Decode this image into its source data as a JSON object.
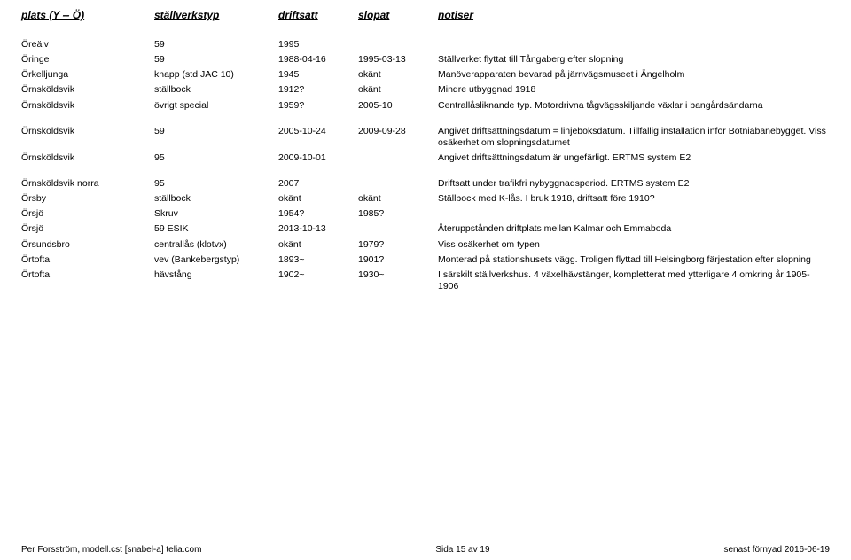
{
  "headers": [
    "plats (Y -- Ö)",
    "ställverkstyp",
    "driftsatt",
    "slopat",
    "notiser"
  ],
  "rows": [
    {
      "g": true,
      "c": [
        "Öreälv",
        "59",
        "1995",
        "",
        ""
      ]
    },
    {
      "g": true,
      "c": [
        "Öringe",
        "59",
        "1988-04-16",
        "1995-03-13",
        "Ställverket flyttat till Tångaberg efter slopning"
      ]
    },
    {
      "g": true,
      "c": [
        "Örkelljunga",
        "knapp (std JAC 10)",
        "1945",
        "okänt",
        "Manöverapparaten bevarad på järnvägsmuseet i Ängelholm"
      ]
    },
    {
      "g": true,
      "c": [
        "Örnsköldsvik",
        "ställbock",
        "1912?",
        "okänt",
        "Mindre utbyggnad 1918"
      ]
    },
    {
      "g": false,
      "c": [
        "Örnsköldsvik",
        "övrigt special",
        "1959?",
        "2005-10",
        "Centrallåsliknande typ. Motordrivna tågvägsskiljande växlar i bangårdsändarna"
      ]
    },
    {
      "g": true,
      "c": [
        "Örnsköldsvik",
        "59",
        "2005-10-24",
        "2009-09-28",
        "Angivet driftsättningsdatum = linjeboksdatum. Tillfällig installation inför Botniabanebygget. Viss osäkerhet om slopningsdatumet"
      ]
    },
    {
      "g": false,
      "c": [
        "Örnsköldsvik",
        "95",
        "2009-10-01",
        "",
        "Angivet driftsättningsdatum är ungefärligt. ERTMS system E2"
      ]
    },
    {
      "g": true,
      "c": [
        "Örnsköldsvik norra",
        "95",
        "2007",
        "",
        "Driftsatt under trafikfri nybyggnadsperiod. ERTMS system E2"
      ]
    },
    {
      "g": true,
      "c": [
        "Örsby",
        "ställbock",
        "okänt",
        "okänt",
        "Ställbock med K-lås. I bruk 1918, driftsatt före 1910?"
      ]
    },
    {
      "g": true,
      "c": [
        "Örsjö",
        "Skruv",
        "1954?",
        "1985?",
        ""
      ]
    },
    {
      "g": true,
      "c": [
        "Örsjö",
        "59 ESIK",
        "2013-10-13",
        "",
        "Återuppstånden driftplats mellan Kalmar och Emmaboda"
      ]
    },
    {
      "g": true,
      "c": [
        "Örsundsbro",
        "centrallås (klotvx)",
        "okänt",
        "1979?",
        "Viss osäkerhet om typen"
      ]
    },
    {
      "g": true,
      "c": [
        "Örtofta",
        "vev (Bankebergstyp)",
        "1893~",
        "1901?",
        "Monterad på stationshusets vägg. Troligen flyttad till Helsingborg färjestation efter slopning"
      ]
    },
    {
      "g": true,
      "c": [
        "Örtofta",
        "hävstång",
        "1902~",
        "1930~",
        "I särskilt ställverkshus. 4 växelhävstänger, kompletterat med ytterligare 4 omkring år 1905-1906"
      ]
    }
  ],
  "footer": {
    "left": "Per Forsström, modell.cst [snabel-a] telia.com",
    "center": "Sida 15 av 19",
    "right": "senast förnyad 2016-06-19"
  }
}
